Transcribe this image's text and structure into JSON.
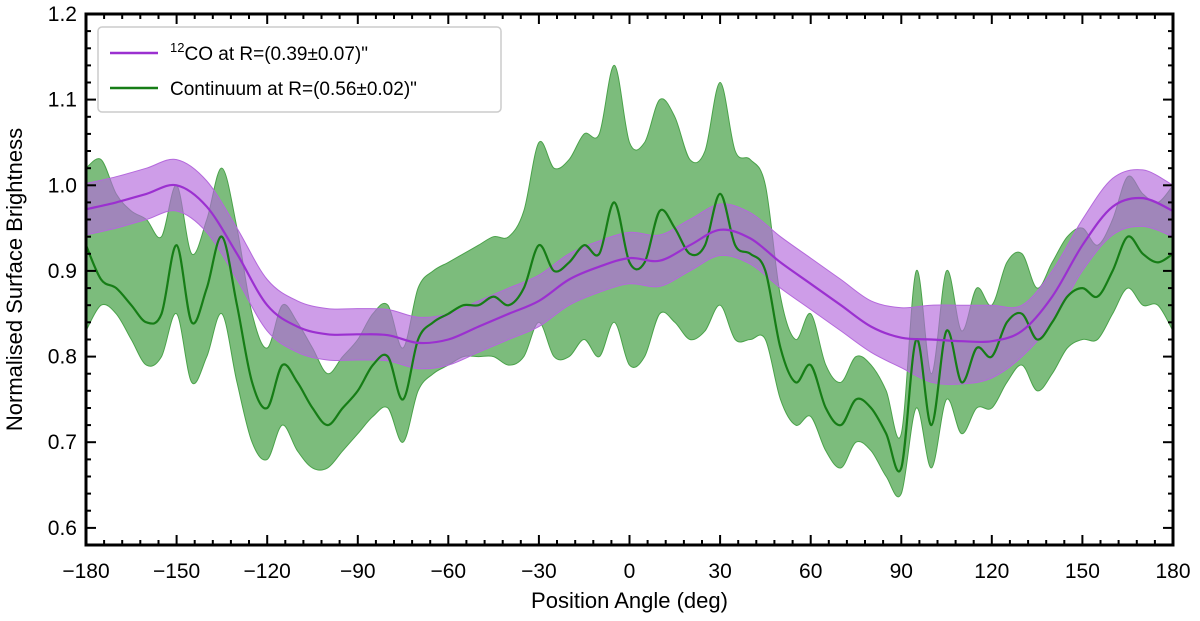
{
  "chart_data": {
    "type": "line",
    "xlabel": "Position Angle (deg)",
    "ylabel": "Normalised Surface Brightness",
    "xlim": [
      -180,
      180
    ],
    "ylim": [
      0.58,
      1.2
    ],
    "xticks": [
      -180,
      -150,
      -120,
      -90,
      -60,
      -30,
      0,
      30,
      60,
      90,
      120,
      150,
      180
    ],
    "xtick_labels": [
      "−180",
      "−150",
      "−120",
      "−90",
      "−60",
      "−30",
      "0",
      "30",
      "60",
      "90",
      "120",
      "150",
      "180"
    ],
    "yticks": [
      0.6,
      0.7,
      0.8,
      0.9,
      1.0,
      1.1,
      1.2
    ],
    "ytick_labels": [
      "0.6",
      "0.7",
      "0.8",
      "0.9",
      "1.0",
      "1.1",
      "1.2"
    ],
    "grid": false,
    "legend_position": "top-left",
    "series": [
      {
        "name": "12CO at R=(0.39±0.07)\"",
        "legend_sup": "12",
        "legend_main": "CO at R=(0.39±0.07)\"",
        "color": "#9b30d0",
        "band_color": "#b468dc",
        "x": [
          -180,
          -170,
          -160,
          -150,
          -140,
          -130,
          -120,
          -110,
          -100,
          -90,
          -80,
          -70,
          -60,
          -50,
          -40,
          -30,
          -20,
          -10,
          0,
          10,
          20,
          30,
          40,
          50,
          60,
          70,
          80,
          90,
          100,
          110,
          120,
          130,
          140,
          150,
          160,
          170,
          180
        ],
        "y": [
          0.972,
          0.98,
          0.99,
          1.0,
          0.975,
          0.92,
          0.86,
          0.835,
          0.826,
          0.826,
          0.825,
          0.816,
          0.82,
          0.835,
          0.85,
          0.865,
          0.89,
          0.905,
          0.915,
          0.912,
          0.93,
          0.948,
          0.938,
          0.91,
          0.885,
          0.86,
          0.835,
          0.822,
          0.82,
          0.818,
          0.818,
          0.83,
          0.87,
          0.93,
          0.975,
          0.985,
          0.97
        ],
        "lower": [
          0.942,
          0.95,
          0.96,
          0.97,
          0.945,
          0.89,
          0.83,
          0.805,
          0.796,
          0.796,
          0.795,
          0.786,
          0.79,
          0.805,
          0.82,
          0.835,
          0.86,
          0.875,
          0.885,
          0.882,
          0.9,
          0.918,
          0.908,
          0.88,
          0.855,
          0.83,
          0.805,
          0.787,
          0.77,
          0.768,
          0.775,
          0.8,
          0.84,
          0.9,
          0.942,
          0.952,
          0.94
        ],
        "upper": [
          1.002,
          1.01,
          1.02,
          1.03,
          1.005,
          0.95,
          0.89,
          0.865,
          0.856,
          0.856,
          0.855,
          0.846,
          0.85,
          0.865,
          0.88,
          0.895,
          0.92,
          0.935,
          0.945,
          0.942,
          0.96,
          0.978,
          0.968,
          0.94,
          0.915,
          0.89,
          0.865,
          0.857,
          0.86,
          0.86,
          0.86,
          0.86,
          0.9,
          0.96,
          1.008,
          1.018,
          1.0
        ]
      },
      {
        "name": "Continuum at R=(0.56±0.02)\"",
        "color": "#167d16",
        "band_color": "#4aa24a",
        "x": [
          -180,
          -175,
          -170,
          -165,
          -160,
          -155,
          -150,
          -145,
          -140,
          -135,
          -130,
          -125,
          -120,
          -115,
          -110,
          -105,
          -100,
          -95,
          -90,
          -85,
          -80,
          -75,
          -70,
          -65,
          -60,
          -55,
          -50,
          -45,
          -40,
          -35,
          -30,
          -25,
          -20,
          -15,
          -10,
          -5,
          0,
          5,
          10,
          15,
          20,
          25,
          30,
          35,
          40,
          45,
          50,
          55,
          60,
          65,
          70,
          75,
          80,
          85,
          90,
          95,
          100,
          105,
          110,
          115,
          120,
          125,
          130,
          135,
          140,
          145,
          150,
          155,
          160,
          165,
          170,
          175,
          180
        ],
        "y": [
          0.93,
          0.89,
          0.88,
          0.86,
          0.84,
          0.85,
          0.93,
          0.84,
          0.88,
          0.94,
          0.86,
          0.77,
          0.74,
          0.79,
          0.77,
          0.74,
          0.72,
          0.74,
          0.76,
          0.79,
          0.8,
          0.75,
          0.82,
          0.84,
          0.85,
          0.86,
          0.86,
          0.87,
          0.86,
          0.88,
          0.93,
          0.9,
          0.91,
          0.93,
          0.92,
          0.98,
          0.91,
          0.91,
          0.97,
          0.95,
          0.92,
          0.93,
          0.99,
          0.93,
          0.92,
          0.9,
          0.81,
          0.77,
          0.79,
          0.74,
          0.72,
          0.75,
          0.74,
          0.71,
          0.67,
          0.82,
          0.72,
          0.83,
          0.77,
          0.81,
          0.8,
          0.84,
          0.85,
          0.82,
          0.84,
          0.87,
          0.88,
          0.87,
          0.9,
          0.94,
          0.92,
          0.91,
          0.92
        ],
        "lower": [
          0.83,
          0.86,
          0.85,
          0.82,
          0.79,
          0.8,
          0.85,
          0.77,
          0.8,
          0.85,
          0.77,
          0.7,
          0.68,
          0.72,
          0.69,
          0.67,
          0.67,
          0.69,
          0.71,
          0.73,
          0.74,
          0.7,
          0.76,
          0.78,
          0.79,
          0.8,
          0.8,
          0.8,
          0.79,
          0.8,
          0.84,
          0.8,
          0.8,
          0.82,
          0.8,
          0.84,
          0.79,
          0.8,
          0.85,
          0.84,
          0.82,
          0.83,
          0.86,
          0.82,
          0.82,
          0.82,
          0.75,
          0.72,
          0.73,
          0.69,
          0.67,
          0.7,
          0.69,
          0.66,
          0.64,
          0.74,
          0.67,
          0.75,
          0.71,
          0.74,
          0.74,
          0.77,
          0.79,
          0.76,
          0.78,
          0.81,
          0.82,
          0.82,
          0.85,
          0.88,
          0.86,
          0.86,
          0.83
        ],
        "upper": [
          1.02,
          1.03,
          0.99,
          0.97,
          0.96,
          0.94,
          1.0,
          0.92,
          0.96,
          1.02,
          0.95,
          0.85,
          0.81,
          0.86,
          0.84,
          0.81,
          0.78,
          0.8,
          0.82,
          0.85,
          0.86,
          0.81,
          0.88,
          0.9,
          0.91,
          0.92,
          0.93,
          0.94,
          0.94,
          0.97,
          1.05,
          1.02,
          1.03,
          1.06,
          1.06,
          1.14,
          1.05,
          1.05,
          1.1,
          1.08,
          1.03,
          1.04,
          1.12,
          1.04,
          1.03,
          1.0,
          0.87,
          0.82,
          0.85,
          0.79,
          0.77,
          0.8,
          0.79,
          0.76,
          0.71,
          0.9,
          0.78,
          0.9,
          0.83,
          0.88,
          0.86,
          0.91,
          0.92,
          0.88,
          0.91,
          0.94,
          0.95,
          0.93,
          0.96,
          1.01,
          0.99,
          0.98,
          1.0
        ]
      }
    ]
  }
}
